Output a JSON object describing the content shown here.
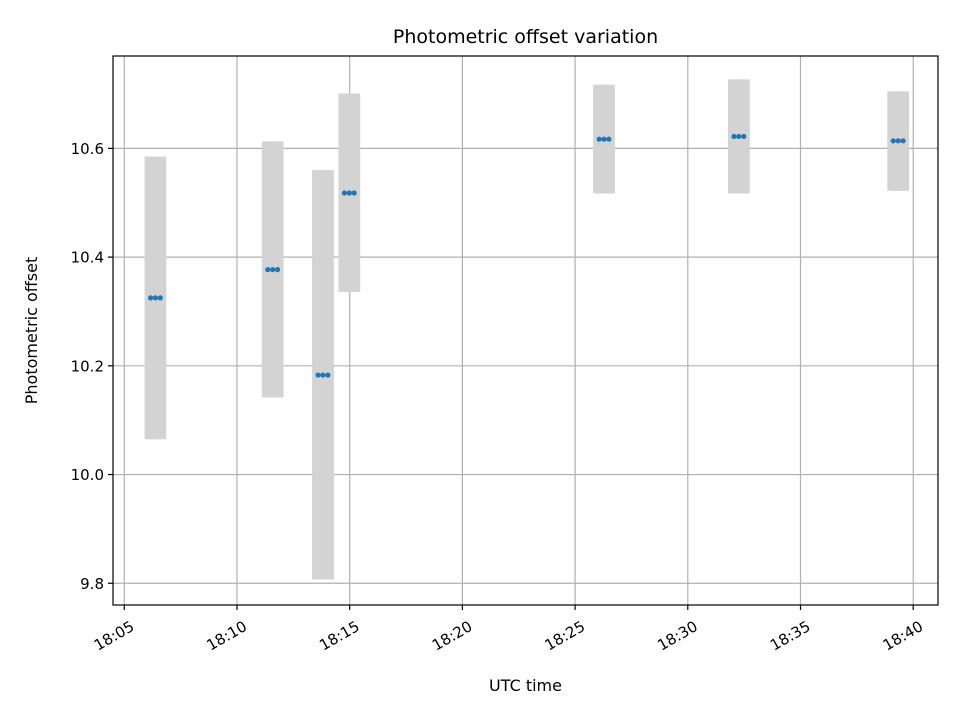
{
  "chart_data": {
    "type": "scatter",
    "title": "Photometric offset variation",
    "xlabel": "UTC time",
    "ylabel": "Photometric offset",
    "x_tick_labels": [
      "18:05",
      "18:10",
      "18:15",
      "18:20",
      "18:25",
      "18:30",
      "18:35",
      "18:40"
    ],
    "y_tick_labels": [
      "9.8",
      "10.0",
      "10.2",
      "10.4",
      "10.6"
    ],
    "x_ticks_minutes": [
      5,
      10,
      15,
      20,
      25,
      30,
      35,
      40
    ],
    "y_ticks": [
      9.8,
      10.0,
      10.2,
      10.4,
      10.6
    ],
    "xlim": [
      "18:04.5",
      "18:41.1"
    ],
    "ylim": [
      9.76,
      10.77
    ],
    "grid": true,
    "colors": {
      "points": "#1f77b4",
      "error_bars": "#d3d3d3",
      "grid": "#b0b0b0"
    },
    "series": [
      {
        "points": [
          {
            "x": "18:06:10",
            "y": 10.325,
            "err_low": 10.065,
            "err_high": 10.585
          },
          {
            "x": "18:06:23",
            "y": 10.325,
            "err_low": 10.065,
            "err_high": 10.585
          },
          {
            "x": "18:06:36",
            "y": 10.325,
            "err_low": 10.065,
            "err_high": 10.585
          },
          {
            "x": "18:11:22",
            "y": 10.377,
            "err_low": 10.142,
            "err_high": 10.613
          },
          {
            "x": "18:11:35",
            "y": 10.377,
            "err_low": 10.142,
            "err_high": 10.613
          },
          {
            "x": "18:11:48",
            "y": 10.377,
            "err_low": 10.142,
            "err_high": 10.613
          },
          {
            "x": "18:13:36",
            "y": 10.183,
            "err_low": 9.807,
            "err_high": 10.56
          },
          {
            "x": "18:13:49",
            "y": 10.183,
            "err_low": 9.807,
            "err_high": 10.56
          },
          {
            "x": "18:14:02",
            "y": 10.183,
            "err_low": 9.807,
            "err_high": 10.56
          },
          {
            "x": "18:14:46",
            "y": 10.518,
            "err_low": 10.336,
            "err_high": 10.701
          },
          {
            "x": "18:14:59",
            "y": 10.518,
            "err_low": 10.336,
            "err_high": 10.701
          },
          {
            "x": "18:15:12",
            "y": 10.518,
            "err_low": 10.336,
            "err_high": 10.701
          },
          {
            "x": "18:26:04",
            "y": 10.617,
            "err_low": 10.517,
            "err_high": 10.717
          },
          {
            "x": "18:26:17",
            "y": 10.617,
            "err_low": 10.517,
            "err_high": 10.717
          },
          {
            "x": "18:26:30",
            "y": 10.617,
            "err_low": 10.517,
            "err_high": 10.717
          },
          {
            "x": "18:32:03",
            "y": 10.622,
            "err_low": 10.517,
            "err_high": 10.727
          },
          {
            "x": "18:32:16",
            "y": 10.622,
            "err_low": 10.517,
            "err_high": 10.727
          },
          {
            "x": "18:32:29",
            "y": 10.622,
            "err_low": 10.517,
            "err_high": 10.727
          },
          {
            "x": "18:39:07",
            "y": 10.614,
            "err_low": 10.522,
            "err_high": 10.705
          },
          {
            "x": "18:39:20",
            "y": 10.614,
            "err_low": 10.522,
            "err_high": 10.705
          },
          {
            "x": "18:39:33",
            "y": 10.614,
            "err_low": 10.522,
            "err_high": 10.705
          }
        ]
      }
    ]
  }
}
